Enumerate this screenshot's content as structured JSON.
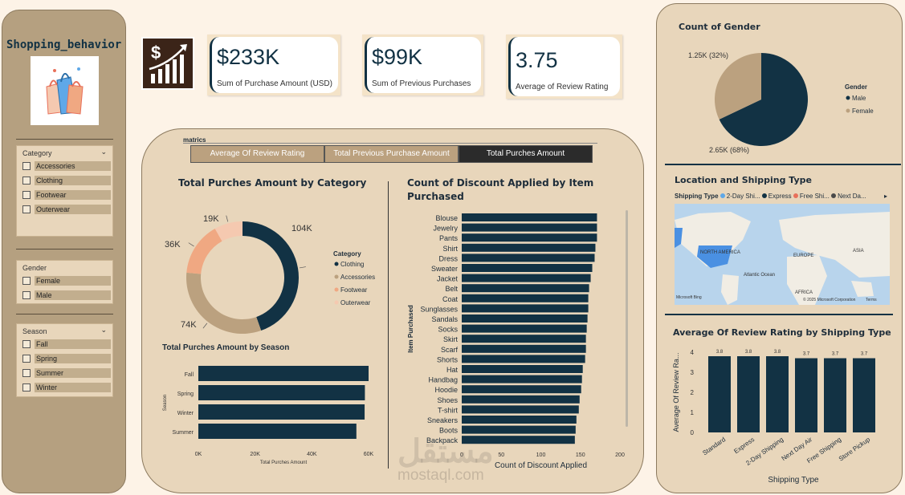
{
  "sidebar": {
    "title": "Shopping_behavior",
    "filters": [
      {
        "title": "Category",
        "items": [
          "Accessories",
          "Clothing",
          "Footwear",
          "Outerwear"
        ]
      },
      {
        "title": "Gender",
        "items": [
          "Female",
          "Male"
        ]
      },
      {
        "title": "Season",
        "items": [
          "Fall",
          "Spring",
          "Summer",
          "Winter"
        ]
      }
    ]
  },
  "kpis": [
    {
      "value": "$233K",
      "label": "Sum of Purchase Amount (USD)"
    },
    {
      "value": "$99K",
      "label": "Sum of Previous Purchases"
    },
    {
      "value": "3.75",
      "label": "Average of Review Rating"
    }
  ],
  "metrics": {
    "label": "matrics",
    "tabs": [
      "Average Of Review Rating",
      "Total Previous Purchase Amount",
      "Total Purches Amount"
    ]
  },
  "map": {
    "title": "Location and Shipping Type",
    "legend_title": "Shipping Type",
    "legend_items": [
      {
        "label": "2-Day Shi...",
        "color": "#5fa8e8"
      },
      {
        "label": "Express",
        "color": "#123244"
      },
      {
        "label": "Free Shi...",
        "color": "#e8705a"
      },
      {
        "label": "Next Da...",
        "color": "#4a4a4a"
      }
    ],
    "labels": [
      "NORTH AMERICA",
      "EUROPE",
      "ASIA",
      "Atlantic Ocean",
      "AFRICA"
    ],
    "attribution": "© 2025 Microsoft Corporation",
    "bing": "Microsoft Bing",
    "terms": "Terms"
  },
  "watermark": {
    "arabic": "مستقل",
    "latin": "mostaql.com"
  },
  "colors": {
    "navy": "#123244",
    "tan": "#bba17f",
    "salmon": "#f0a882",
    "peach": "#f5c9b0",
    "bg": "#fdf3e7",
    "panel": "#e8d6bb"
  },
  "chart_data": [
    {
      "type": "pie",
      "title": "Total Purches Amount by Category",
      "legend_title": "Category",
      "categories": [
        "Clothing",
        "Accessories",
        "Footwear",
        "Outerwear"
      ],
      "values": [
        104,
        74,
        36,
        19
      ],
      "data_labels": [
        "104K",
        "74K",
        "36K",
        "19K"
      ],
      "colors": [
        "#123244",
        "#bba17f",
        "#f0a882",
        "#f5c9b0"
      ]
    },
    {
      "type": "bar",
      "orientation": "horizontal",
      "title": "Total Purches Amount by Season",
      "categories": [
        "Fall",
        "Spring",
        "Winter",
        "Summer"
      ],
      "values": [
        60,
        58.7,
        58.6,
        55.7
      ],
      "xlabel": "Total Purches Amount",
      "ylabel": "Season",
      "xlim": [
        0,
        60
      ],
      "xticks": [
        "0K",
        "20K",
        "40K",
        "60K"
      ]
    },
    {
      "type": "bar",
      "orientation": "horizontal",
      "title": "Count of Discount Applied by Item Purchased",
      "categories": [
        "Blouse",
        "Jewelry",
        "Pants",
        "Shirt",
        "Dress",
        "Sweater",
        "Jacket",
        "Belt",
        "Coat",
        "Sunglasses",
        "Sandals",
        "Socks",
        "Skirt",
        "Scarf",
        "Shorts",
        "Hat",
        "Handbag",
        "Hoodie",
        "Shoes",
        "T-shirt",
        "Sneakers",
        "Boots",
        "Backpack"
      ],
      "values": [
        171,
        171,
        171,
        169,
        168,
        165,
        163,
        161,
        160,
        160,
        159,
        158,
        157,
        157,
        156,
        153,
        152,
        151,
        149,
        148,
        145,
        144,
        143
      ],
      "xlabel": "Count of Discount Applied",
      "ylabel": "Item Purchased",
      "xlim": [
        0,
        200
      ],
      "xticks": [
        "0",
        "50",
        "100",
        "150",
        "200"
      ]
    },
    {
      "type": "pie",
      "title": "Count of Gender",
      "legend_title": "Gender",
      "categories": [
        "Male",
        "Female"
      ],
      "values": [
        2.65,
        1.25
      ],
      "data_labels": [
        "2.65K (68%)",
        "1.25K (32%)"
      ],
      "colors": [
        "#123244",
        "#bba17f"
      ]
    },
    {
      "type": "bar",
      "title": "Average Of Review Rating by Shipping Type",
      "categories": [
        "Standard",
        "Express",
        "2-Day Shipping",
        "Next Day Air",
        "Free Shipping",
        "Store Pickup"
      ],
      "values": [
        3.8,
        3.8,
        3.8,
        3.7,
        3.7,
        3.7
      ],
      "data_labels": [
        "3.8",
        "3.8",
        "3.8",
        "3.7",
        "3.7",
        "3.7"
      ],
      "xlabel": "Shipping Type",
      "ylabel": "Average Of Review Ra...",
      "ylim": [
        0,
        4
      ],
      "yticks": [
        "0",
        "1",
        "2",
        "3",
        "4"
      ]
    }
  ]
}
